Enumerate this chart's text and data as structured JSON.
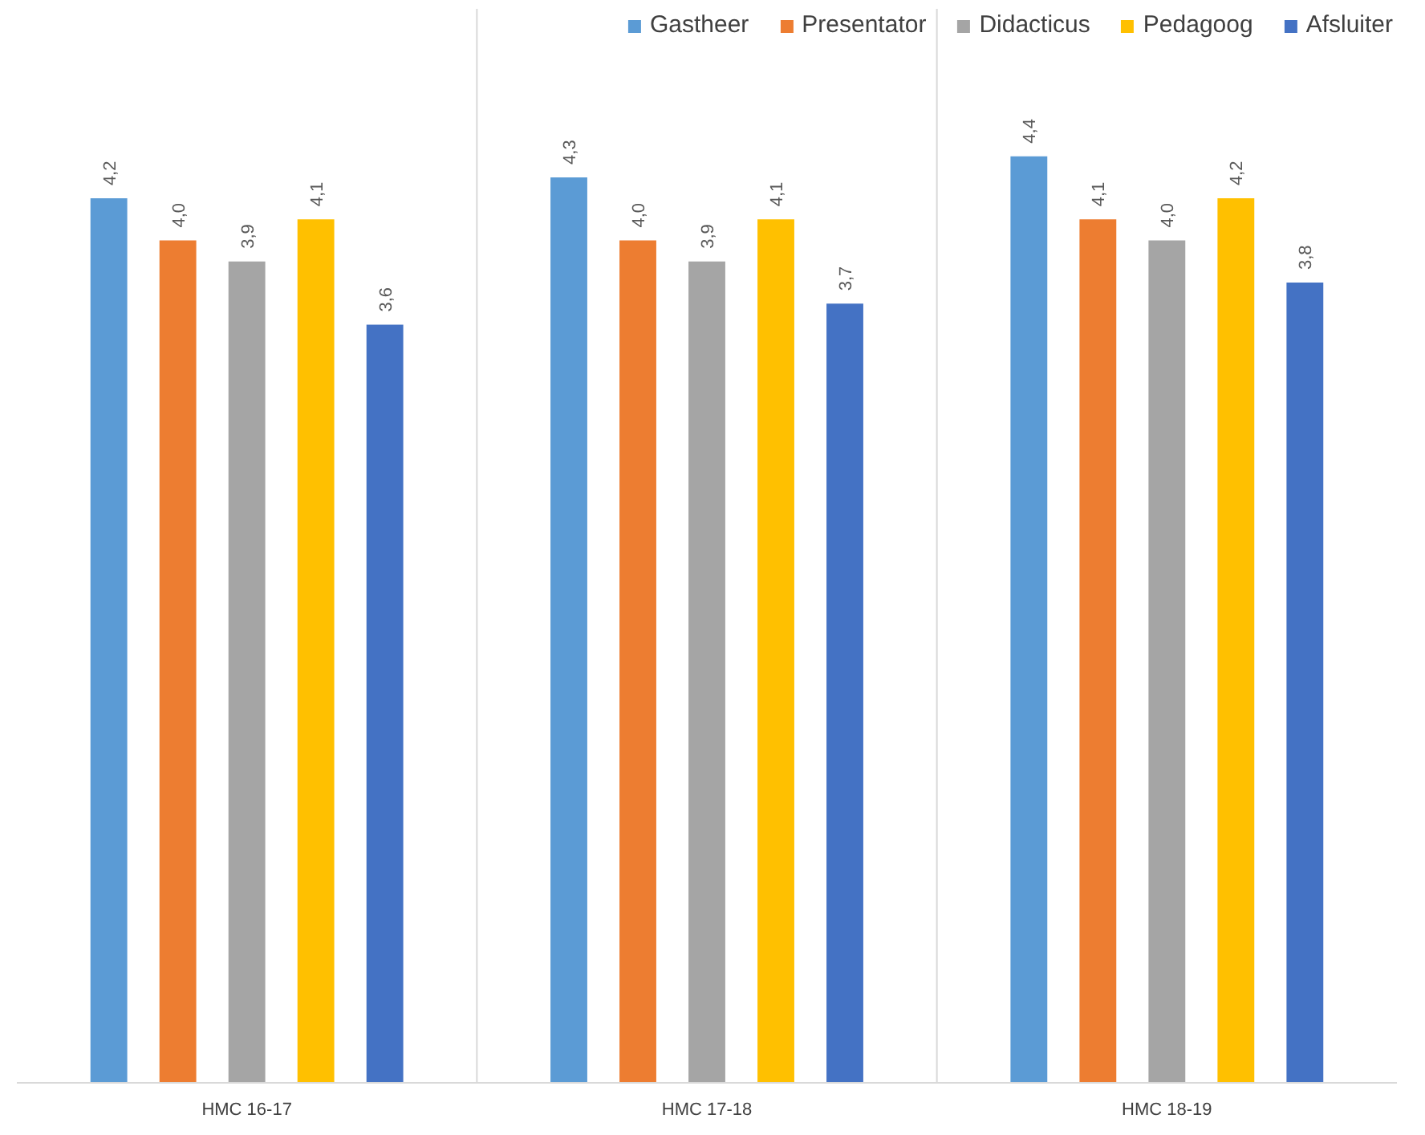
{
  "chart_data": {
    "type": "bar",
    "categories": [
      "HMC 16-17",
      "HMC 17-18",
      "HMC 18-19"
    ],
    "series": [
      {
        "name": "Gastheer",
        "color": "#5b9bd5",
        "values": [
          4.2,
          4.3,
          4.4
        ],
        "value_labels": [
          "4,2",
          "4,3",
          "4,4"
        ]
      },
      {
        "name": "Presentator",
        "color": "#ed7d31",
        "values": [
          4.0,
          4.0,
          4.1
        ],
        "value_labels": [
          "4,0",
          "4,0",
          "4,1"
        ]
      },
      {
        "name": "Didacticus",
        "color": "#a5a5a5",
        "values": [
          3.9,
          3.9,
          4.0
        ],
        "value_labels": [
          "3,9",
          "3,9",
          "4,0"
        ]
      },
      {
        "name": "Pedagoog",
        "color": "#ffc000",
        "values": [
          4.1,
          4.1,
          4.2
        ],
        "value_labels": [
          "4,1",
          "4,1",
          "4,2"
        ]
      },
      {
        "name": "Afsluiter",
        "color": "#4472c4",
        "values": [
          3.6,
          3.7,
          3.8
        ],
        "value_labels": [
          "3,6",
          "3,7",
          "3,8"
        ]
      }
    ],
    "ylim": [
      0,
      5.1
    ],
    "tick_labels": "x",
    "grid": "x",
    "legend": "top right"
  }
}
